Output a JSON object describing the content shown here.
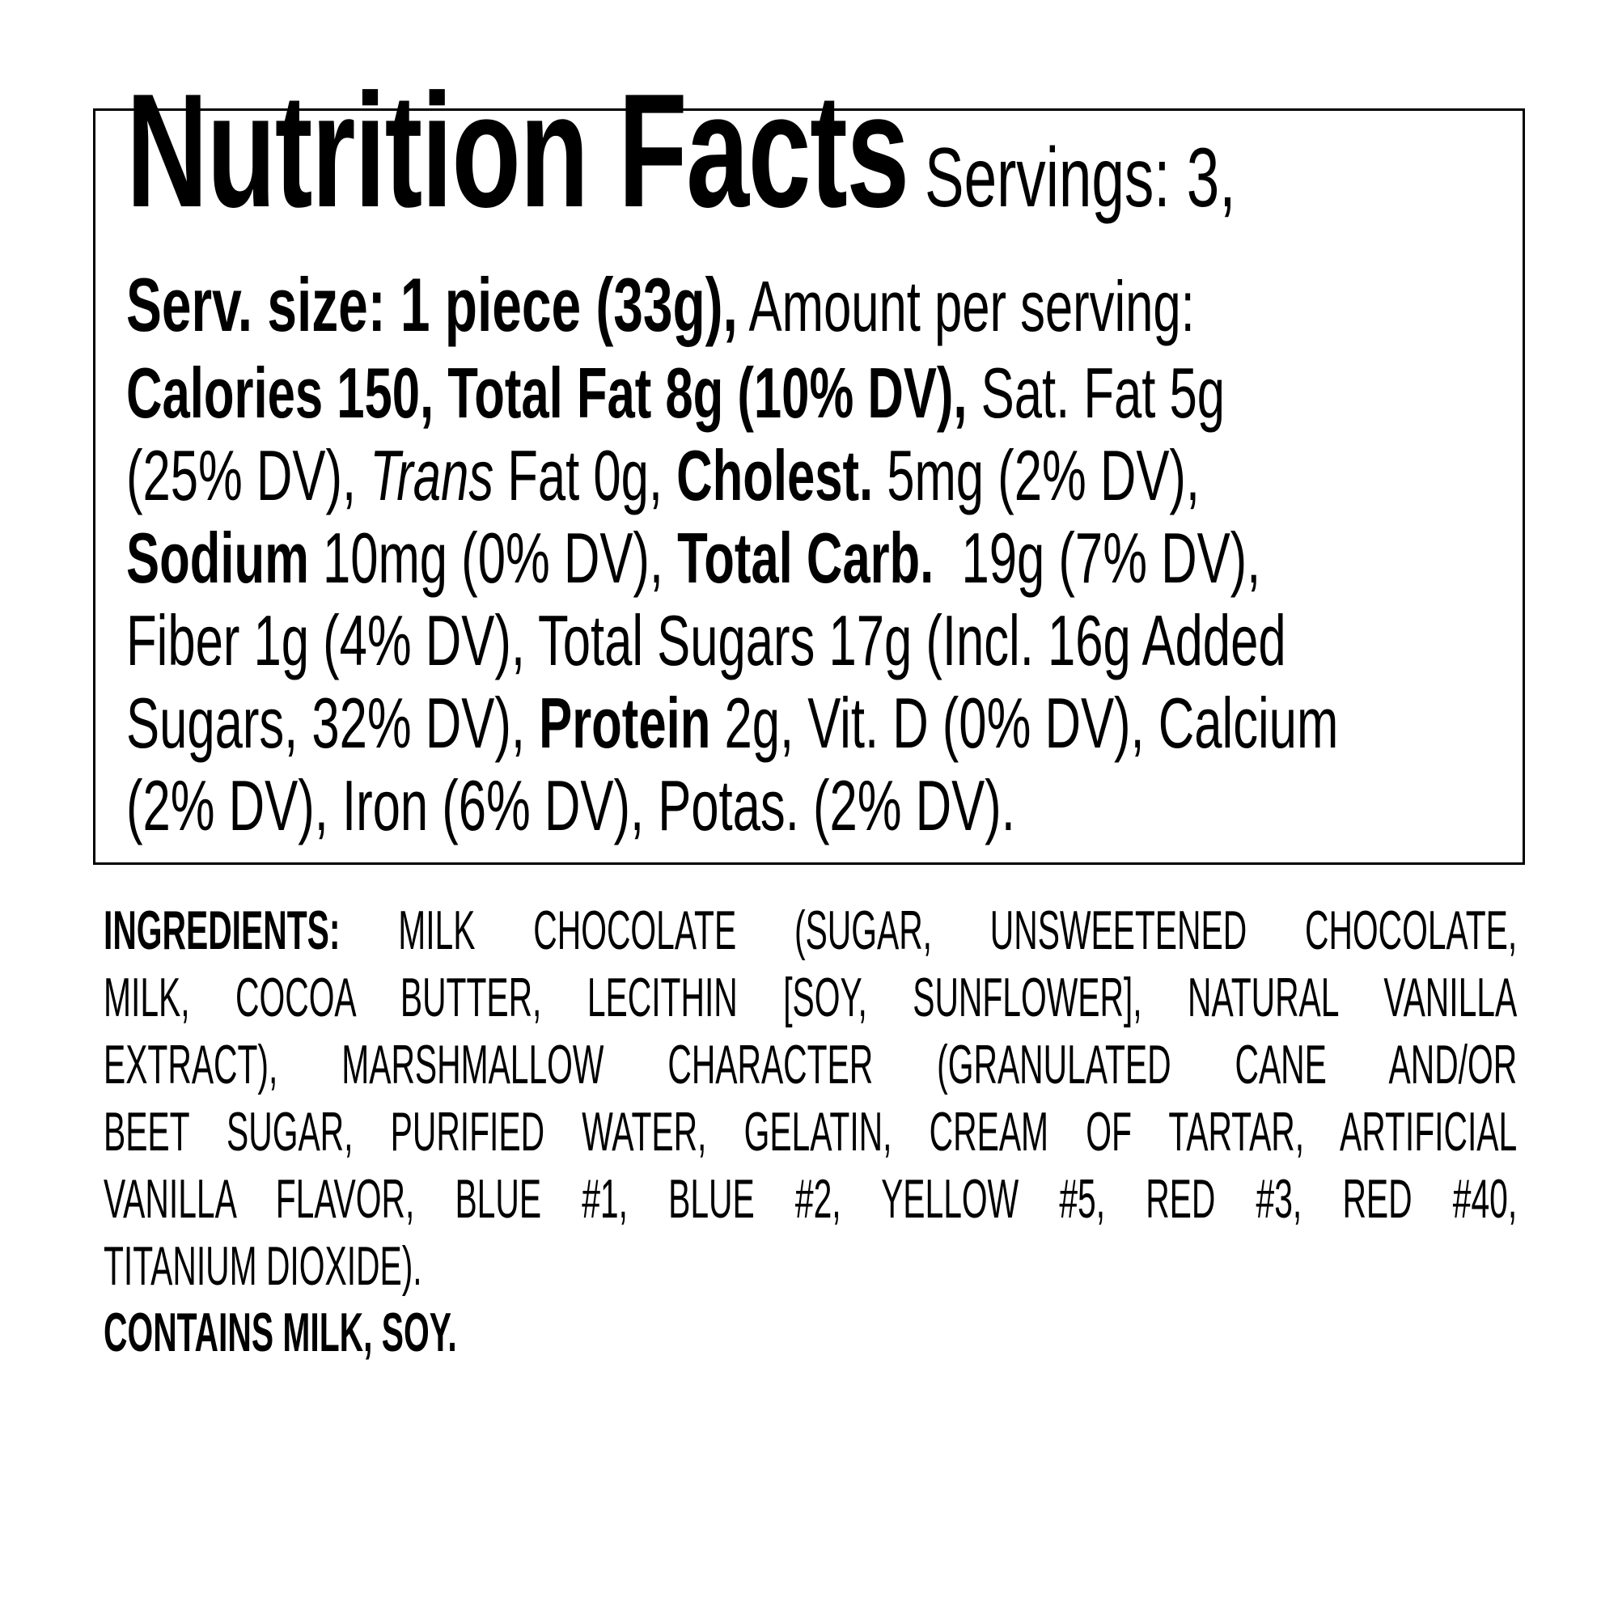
{
  "nutrition_facts": {
    "lines": [
      [
        {
          "t": "Nutrition Facts",
          "s": "b big"
        },
        {
          "t": " Servings: 3,",
          "s": "mid"
        }
      ],
      [
        {
          "t": "Serv. size: 1 piece (33g),",
          "s": "b l2b"
        },
        {
          "t": " Amount per serving:",
          "s": ""
        }
      ],
      [
        {
          "t": "Calories 150, Total Fat 8g (10% DV),",
          "s": "b"
        },
        {
          "t": " Sat. Fat 5g",
          "s": ""
        }
      ],
      [
        {
          "t": "(25% DV), ",
          "s": ""
        },
        {
          "t": "Trans",
          "s": "i"
        },
        {
          "t": " Fat 0g, ",
          "s": ""
        },
        {
          "t": "Cholest.",
          "s": "b"
        },
        {
          "t": " 5mg (2% DV),",
          "s": ""
        }
      ],
      [
        {
          "t": "Sodium",
          "s": "b"
        },
        {
          "t": " 10mg (0% DV), ",
          "s": ""
        },
        {
          "t": "Total Carb.",
          "s": "b"
        },
        {
          "t": "  19g (7% DV),",
          "s": ""
        }
      ],
      [
        {
          "t": "Fiber 1g (4% DV), Total Sugars 17g (Incl. 16g Added",
          "s": ""
        }
      ],
      [
        {
          "t": "Sugars, 32% DV), ",
          "s": ""
        },
        {
          "t": "Protein",
          "s": "b"
        },
        {
          "t": " 2g, Vit. D (0% DV), Calcium",
          "s": ""
        }
      ],
      [
        {
          "t": "(2% DV), Iron (6% DV), Potas. (2% DV).",
          "s": ""
        }
      ]
    ]
  },
  "ingredients": {
    "label": "INGREDIENTS:",
    "lines": [
      " MILK CHOCOLATE (SUGAR, UNSWEETENED CHOCOLATE,",
      "MILK, COCOA BUTTER, LECITHIN [SOY, SUNFLOWER], NATURAL VANILLA",
      "EXTRACT), MARSHMALLOW CHARACTER (GRANULATED CANE AND/OR",
      "BEET SUGAR, PURIFIED WATER, GELATIN, CREAM OF TARTAR, ARTIFICIAL",
      "VANILLA FLAVOR, BLUE #1, BLUE #2, YELLOW #5, RED #3, RED #40,",
      "TITANIUM DIOXIDE)."
    ]
  },
  "allergens": "CONTAINS MILK, SOY."
}
